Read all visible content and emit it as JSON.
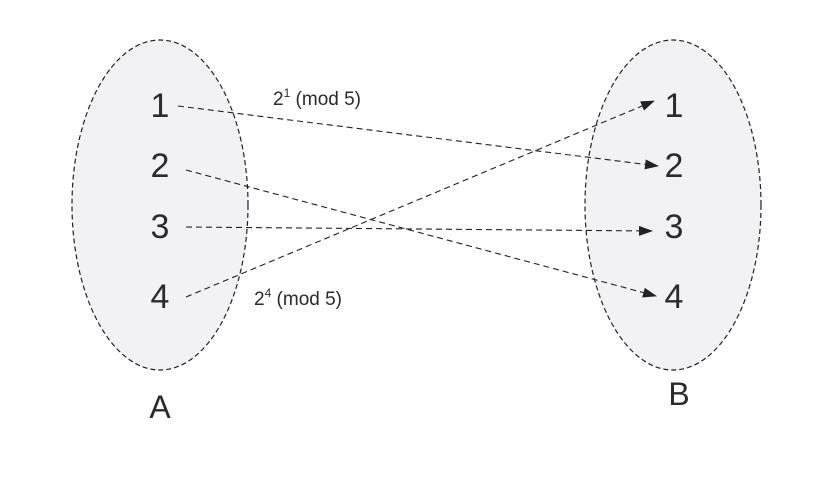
{
  "sets": {
    "A": {
      "name": "A",
      "elements": [
        "1",
        "2",
        "3",
        "4"
      ]
    },
    "B": {
      "name": "B",
      "elements": [
        "1",
        "2",
        "3",
        "4"
      ]
    }
  },
  "mappings": [
    {
      "from": "1",
      "to": "2"
    },
    {
      "from": "2",
      "to": "4"
    },
    {
      "from": "3",
      "to": "3"
    },
    {
      "from": "4",
      "to": "1"
    }
  ],
  "annotations": {
    "top": {
      "base": "2",
      "exponent": "1",
      "rest": " (mod 5)"
    },
    "bottom": {
      "base": "2",
      "exponent": "4",
      "rest": " (mod 5)"
    }
  },
  "colors": {
    "set_fill": "#f2f2f4",
    "stroke": "#222222",
    "text": "#2b2b2b"
  }
}
